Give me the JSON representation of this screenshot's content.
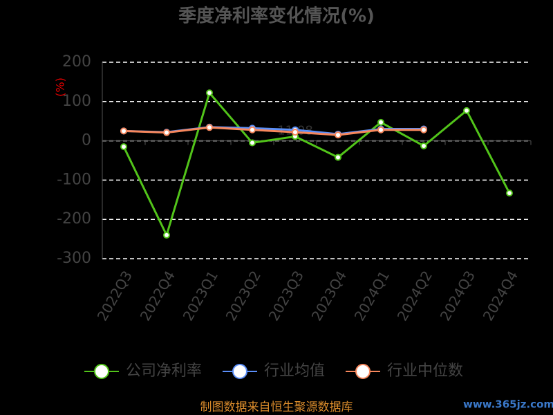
{
  "chart_data": {
    "type": "line",
    "title": "季度净利率变化情况(%)",
    "y_label": "(%)",
    "categories": [
      "2022Q3",
      "2022Q4",
      "2023Q1",
      "2023Q2",
      "2023Q3",
      "2023Q4",
      "2024Q1",
      "2024Q2",
      "2024Q3",
      "2024Q4"
    ],
    "series": [
      {
        "name": "公司净利率",
        "color": "#52c41a",
        "values": [
          -15,
          -240,
          122,
          -5,
          11.08,
          -42,
          47,
          -13,
          77,
          -133
        ],
        "value_labels": [
          null,
          null,
          null,
          null,
          "11.08",
          null,
          null,
          null,
          null,
          null
        ]
      },
      {
        "name": "行业均值",
        "color": "#5b8ff9",
        "values": [
          25,
          22,
          35,
          32,
          28,
          17,
          30,
          30,
          null,
          null
        ]
      },
      {
        "name": "行业中位数",
        "color": "#f7875c",
        "values": [
          25,
          21,
          34,
          28,
          22,
          15,
          28,
          28,
          null,
          null
        ]
      }
    ],
    "ylim": [
      -300,
      200
    ],
    "yticks": [
      -300,
      -200,
      -100,
      0,
      100,
      200
    ],
    "grid": true,
    "source": "制图数据来自恒生聚源数据库",
    "watermark": "www.365jz.com"
  }
}
